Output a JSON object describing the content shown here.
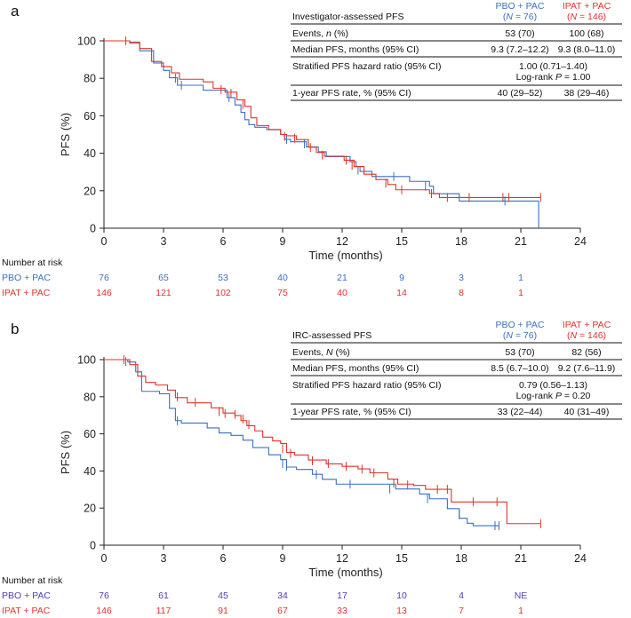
{
  "colors": {
    "pbo": "#3a6fc4",
    "ipat": "#e0332a",
    "risk_pbo_a": "#3a6fc4",
    "risk_pbo_b": "#4a3fb3"
  },
  "chart_data": [
    {
      "panel": "a",
      "type": "line",
      "table": {
        "title": "Investigator-assessed PFS",
        "col1_head": [
          "PBO + PAC",
          "(N = 76)"
        ],
        "col2_head": [
          "IPAT + PAC",
          "(N = 146)"
        ],
        "rows": [
          {
            "label": "Events, n (%)",
            "v1": "53 (70)",
            "v2": "100 (68)"
          },
          {
            "label": "Median PFS, months (95% CI)",
            "v1": "9.3 (7.2–12.2)",
            "v2": "9.3 (8.0–11.0)"
          },
          {
            "label": "Stratified PFS hazard ratio (95% CI)",
            "merged": [
              "1.00 (0.71–1.40)",
              "Log-rank P = 1.00"
            ]
          },
          {
            "label": "1-year PFS rate, % (95% CI)",
            "v1": "40 (29–52)",
            "v2": "38 (29–46)"
          }
        ]
      },
      "xlabel": "Time (months)",
      "ylabel": "PFS (%)",
      "xlim": [
        0,
        24
      ],
      "ylim": [
        0,
        100
      ],
      "xticks": [
        0,
        3,
        6,
        9,
        12,
        15,
        18,
        21,
        24
      ],
      "yticks": [
        0,
        20,
        40,
        60,
        80,
        100
      ],
      "series": [
        {
          "name": "PBO + PAC",
          "color_key": "pbo",
          "points": [
            [
              0,
              100
            ],
            [
              0.5,
              100
            ],
            [
              1.3,
              98.7
            ],
            [
              1.8,
              94.7
            ],
            [
              2.5,
              88.2
            ],
            [
              3.0,
              84.2
            ],
            [
              3.3,
              80.3
            ],
            [
              3.7,
              76.3
            ],
            [
              4.5,
              76.3
            ],
            [
              5.0,
              73.7
            ],
            [
              5.8,
              73.7
            ],
            [
              6.2,
              69.7
            ],
            [
              6.6,
              65.8
            ],
            [
              6.9,
              61.8
            ],
            [
              7.1,
              57.9
            ],
            [
              7.3,
              55.3
            ],
            [
              7.6,
              53.9
            ],
            [
              8.2,
              52.6
            ],
            [
              8.9,
              50.0
            ],
            [
              9.1,
              47.4
            ],
            [
              9.4,
              46.1
            ],
            [
              10.2,
              43.4
            ],
            [
              10.8,
              40.8
            ],
            [
              11.2,
              38.2
            ],
            [
              12.4,
              35.5
            ],
            [
              12.7,
              32.9
            ],
            [
              12.9,
              30.3
            ],
            [
              13.5,
              27.6
            ],
            [
              14.8,
              27.6
            ],
            [
              15.4,
              25.0
            ],
            [
              16.4,
              22.4
            ],
            [
              16.6,
              18.4
            ],
            [
              17.9,
              14.5
            ],
            [
              21.9,
              14.5
            ],
            [
              21.9,
              0
            ]
          ],
          "censor": [
            [
              3.9,
              76.3
            ],
            [
              6.3,
              69.7
            ],
            [
              9.2,
              47.4
            ],
            [
              10.1,
              45.0
            ],
            [
              12.8,
              31.0
            ],
            [
              14.6,
              27.6
            ],
            [
              16.2,
              22.4
            ],
            [
              20.2,
              14.5
            ]
          ]
        },
        {
          "name": "IPAT + PAC",
          "color_key": "ipat",
          "points": [
            [
              0,
              100
            ],
            [
              0.4,
              100
            ],
            [
              1.3,
              99.3
            ],
            [
              1.8,
              95.9
            ],
            [
              2.4,
              89.0
            ],
            [
              2.9,
              86.3
            ],
            [
              3.4,
              82.9
            ],
            [
              3.8,
              79.5
            ],
            [
              5.0,
              78.1
            ],
            [
              5.5,
              74.7
            ],
            [
              6.1,
              72.6
            ],
            [
              6.7,
              68.5
            ],
            [
              7.1,
              65.1
            ],
            [
              7.4,
              58.9
            ],
            [
              7.7,
              54.8
            ],
            [
              8.3,
              52.7
            ],
            [
              8.9,
              50.0
            ],
            [
              9.2,
              49.3
            ],
            [
              9.7,
              47.3
            ],
            [
              10.3,
              43.2
            ],
            [
              10.7,
              40.4
            ],
            [
              11.1,
              38.4
            ],
            [
              12.1,
              36.3
            ],
            [
              12.6,
              32.9
            ],
            [
              13.1,
              28.8
            ],
            [
              13.7,
              26.0
            ],
            [
              14.3,
              23.3
            ],
            [
              14.7,
              20.5
            ],
            [
              15.7,
              20.5
            ],
            [
              16.4,
              18.5
            ],
            [
              16.9,
              16.4
            ],
            [
              22.0,
              16.4
            ]
          ],
          "censor": [
            [
              1.1,
              100
            ],
            [
              3.6,
              80.0
            ],
            [
              5.9,
              74.0
            ],
            [
              6.4,
              72.0
            ],
            [
              7.0,
              66.0
            ],
            [
              9.1,
              49.0
            ],
            [
              9.6,
              48.0
            ],
            [
              10.4,
              43.0
            ],
            [
              11.0,
              39.0
            ],
            [
              12.2,
              36.3
            ],
            [
              12.5,
              33.5
            ],
            [
              14.2,
              24.0
            ],
            [
              15.0,
              20.5
            ],
            [
              16.5,
              18.5
            ],
            [
              17.3,
              16.4
            ],
            [
              18.4,
              16.4
            ],
            [
              20.1,
              16.4
            ],
            [
              20.4,
              16.4
            ],
            [
              22.0,
              16.4
            ]
          ]
        }
      ],
      "risk": {
        "title": "Number at risk",
        "times": [
          0,
          3,
          6,
          9,
          12,
          15,
          18,
          21
        ],
        "rows": [
          {
            "name": "PBO + PAC",
            "color_key": "risk_pbo_a",
            "values": [
              "76",
              "65",
              "53",
              "40",
              "21",
              "9",
              "3",
              "1"
            ]
          },
          {
            "name": "IPAT + PAC",
            "color_key": "ipat",
            "values": [
              "146",
              "121",
              "102",
              "75",
              "40",
              "14",
              "8",
              "1"
            ]
          }
        ]
      }
    },
    {
      "panel": "b",
      "type": "line",
      "table": {
        "title": "IRC-assessed PFS",
        "col1_head": [
          "PBO + PAC",
          "(N = 76)"
        ],
        "col2_head": [
          "IPAT + PAC",
          "(N = 146)"
        ],
        "rows": [
          {
            "label": "Events, N (%)",
            "v1": "53 (70)",
            "v2": "82 (56)"
          },
          {
            "label": "Median PFS, months (95% CI)",
            "v1": "8.5 (6.7–10.0)",
            "v2": "9.2 (7.6–11.9)"
          },
          {
            "label": "Stratified PFS hazard ratio (95% CI)",
            "merged": [
              "0.79 (0.56–1.13)",
              "Log-rank P = 0.20"
            ]
          },
          {
            "label": "1-year PFS rate, % (95% CI)",
            "v1": "33 (22–44)",
            "v2": "40 (31–49)"
          }
        ]
      },
      "xlabel": "Time (months)",
      "ylabel": "PFS (%)",
      "xlim": [
        0,
        24
      ],
      "ylim": [
        0,
        100
      ],
      "xticks": [
        0,
        3,
        6,
        9,
        12,
        15,
        18,
        21,
        24
      ],
      "yticks": [
        0,
        20,
        40,
        60,
        80,
        100
      ],
      "series": [
        {
          "name": "PBO + PAC",
          "color_key": "pbo",
          "points": [
            [
              0,
              100
            ],
            [
              1.2,
              98.7
            ],
            [
              1.6,
              93.4
            ],
            [
              1.9,
              82.9
            ],
            [
              2.8,
              81.6
            ],
            [
              3.3,
              73.7
            ],
            [
              3.6,
              67.1
            ],
            [
              3.9,
              65.8
            ],
            [
              5.2,
              63.2
            ],
            [
              5.8,
              60.5
            ],
            [
              6.4,
              59.2
            ],
            [
              7.0,
              56.6
            ],
            [
              7.5,
              52.6
            ],
            [
              8.3,
              48.7
            ],
            [
              8.9,
              46.1
            ],
            [
              9.2,
              42.1
            ],
            [
              9.7,
              40.8
            ],
            [
              10.5,
              38.2
            ],
            [
              11.0,
              35.5
            ],
            [
              11.7,
              32.9
            ],
            [
              14.7,
              30.3
            ],
            [
              15.9,
              27.6
            ],
            [
              16.4,
              25.0
            ],
            [
              17.3,
              19.7
            ],
            [
              17.9,
              14.5
            ],
            [
              18.3,
              11.8
            ],
            [
              18.6,
              10.5
            ],
            [
              19.9,
              10.5
            ]
          ],
          "censor": [
            [
              1.1,
              99.0
            ],
            [
              3.7,
              67.0
            ],
            [
              9.0,
              44.0
            ],
            [
              9.2,
              42.5
            ],
            [
              10.7,
              38.0
            ],
            [
              12.4,
              32.9
            ],
            [
              14.4,
              30.3
            ],
            [
              16.3,
              25.0
            ],
            [
              17.9,
              16.4
            ],
            [
              19.7,
              10.5
            ],
            [
              19.9,
              10.5
            ]
          ]
        },
        {
          "name": "IPAT + PAC",
          "color_key": "ipat",
          "points": [
            [
              0,
              100
            ],
            [
              0.8,
              100
            ],
            [
              1.3,
              97.3
            ],
            [
              1.7,
              91.1
            ],
            [
              2.1,
              87.7
            ],
            [
              2.6,
              86.3
            ],
            [
              3.2,
              83.6
            ],
            [
              3.6,
              79.5
            ],
            [
              4.2,
              76.7
            ],
            [
              5.4,
              74.0
            ],
            [
              6.0,
              71.2
            ],
            [
              6.6,
              69.9
            ],
            [
              6.9,
              67.1
            ],
            [
              7.2,
              64.4
            ],
            [
              7.6,
              61.6
            ],
            [
              8.0,
              58.2
            ],
            [
              8.5,
              56.2
            ],
            [
              8.9,
              54.8
            ],
            [
              9.2,
              50.0
            ],
            [
              9.6,
              48.6
            ],
            [
              10.3,
              45.9
            ],
            [
              11.2,
              43.8
            ],
            [
              12.0,
              42.5
            ],
            [
              12.8,
              41.1
            ],
            [
              13.4,
              39.0
            ],
            [
              14.3,
              35.6
            ],
            [
              14.8,
              32.9
            ],
            [
              15.6,
              32.2
            ],
            [
              16.2,
              30.1
            ],
            [
              17.4,
              30.1
            ],
            [
              17.5,
              23.3
            ],
            [
              20.2,
              23.3
            ],
            [
              20.3,
              11.6
            ],
            [
              22.0,
              11.6
            ]
          ],
          "censor": [
            [
              1.0,
              100
            ],
            [
              3.7,
              80.0
            ],
            [
              4.6,
              77.0
            ],
            [
              5.8,
              72.0
            ],
            [
              6.1,
              71.0
            ],
            [
              6.6,
              70.5
            ],
            [
              7.0,
              68.0
            ],
            [
              7.3,
              65.0
            ],
            [
              9.0,
              52.0
            ],
            [
              9.4,
              49.5
            ],
            [
              10.5,
              45.5
            ],
            [
              11.3,
              44.0
            ],
            [
              12.2,
              42.5
            ],
            [
              13.0,
              41.0
            ],
            [
              13.6,
              39.0
            ],
            [
              14.6,
              33.5
            ],
            [
              15.3,
              32.5
            ],
            [
              16.8,
              30.1
            ],
            [
              17.3,
              30.1
            ],
            [
              18.6,
              23.3
            ],
            [
              19.8,
              23.3
            ],
            [
              22.0,
              11.6
            ]
          ]
        }
      ],
      "risk": {
        "title": "Number at risk",
        "times": [
          0,
          3,
          6,
          9,
          12,
          15,
          18,
          21
        ],
        "rows": [
          {
            "name": "PBO + PAC",
            "color_key": "risk_pbo_b",
            "values": [
              "76",
              "61",
              "45",
              "34",
              "17",
              "10",
              "4",
              "NE"
            ]
          },
          {
            "name": "IPAT + PAC",
            "color_key": "ipat",
            "values": [
              "146",
              "117",
              "91",
              "67",
              "33",
              "13",
              "7",
              "1"
            ]
          }
        ]
      }
    }
  ]
}
